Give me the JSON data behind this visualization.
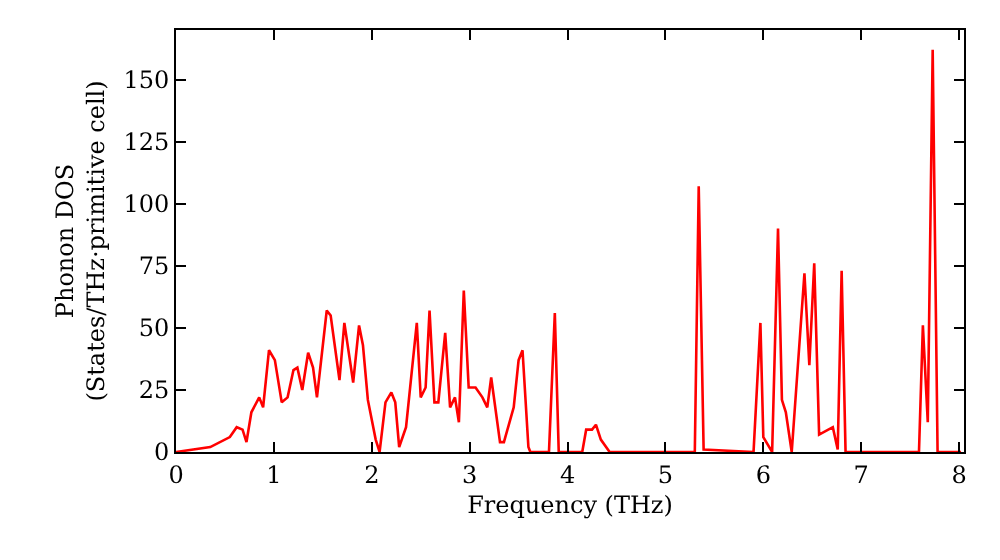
{
  "chart_data": {
    "type": "line",
    "xlabel": "Frequency (THz)",
    "ylabel": "Phonon DOS\n(States/THz·primitive cell)",
    "xlim": [
      0,
      8.05
    ],
    "ylim": [
      0,
      170
    ],
    "xticks": [
      0,
      1,
      2,
      3,
      4,
      5,
      6,
      7,
      8
    ],
    "yticks": [
      0,
      25,
      50,
      75,
      100,
      125,
      150
    ],
    "marker": "none",
    "line_style": "solid",
    "series": [
      {
        "color": "#ff0000",
        "x": [
          0.0,
          0.35,
          0.55,
          0.62,
          0.68,
          0.72,
          0.77,
          0.85,
          0.89,
          0.95,
          1.01,
          1.08,
          1.14,
          1.2,
          1.24,
          1.29,
          1.35,
          1.4,
          1.44,
          1.54,
          1.58,
          1.67,
          1.72,
          1.81,
          1.87,
          1.91,
          1.96,
          2.04,
          2.08,
          2.14,
          2.2,
          2.24,
          2.28,
          2.35,
          2.46,
          2.5,
          2.55,
          2.59,
          2.64,
          2.68,
          2.75,
          2.8,
          2.85,
          2.89,
          2.94,
          2.99,
          3.06,
          3.13,
          3.18,
          3.22,
          3.31,
          3.35,
          3.45,
          3.5,
          3.54,
          3.6,
          3.62,
          3.81,
          3.87,
          3.91,
          4.15,
          4.19,
          4.25,
          4.29,
          4.34,
          4.43,
          5.3,
          5.34,
          5.39,
          5.9,
          5.97,
          6.0,
          6.09,
          6.15,
          6.19,
          6.23,
          6.29,
          6.42,
          6.47,
          6.52,
          6.57,
          6.71,
          6.76,
          6.8,
          6.84,
          7.59,
          7.63,
          7.68,
          7.73,
          7.78,
          8.02
        ],
        "values": [
          0,
          2,
          6,
          10,
          9,
          4,
          16,
          22,
          18,
          41,
          37,
          20,
          22,
          33,
          34,
          25,
          40,
          34,
          22,
          57,
          55,
          29,
          52,
          28,
          51,
          43,
          21,
          5,
          0,
          20,
          24,
          20,
          2,
          10,
          52,
          22,
          26,
          57,
          20,
          20,
          48,
          18,
          22,
          12,
          65,
          26,
          26,
          22,
          18,
          30,
          4,
          4,
          18,
          37,
          41,
          2,
          0,
          0,
          56,
          0,
          0,
          9,
          9,
          11,
          5,
          0,
          0,
          107,
          1,
          0,
          52,
          6,
          0,
          90,
          21,
          16,
          0,
          72,
          35,
          76,
          7,
          10,
          1,
          73,
          0,
          0,
          51,
          12,
          162,
          0,
          0
        ]
      }
    ]
  }
}
